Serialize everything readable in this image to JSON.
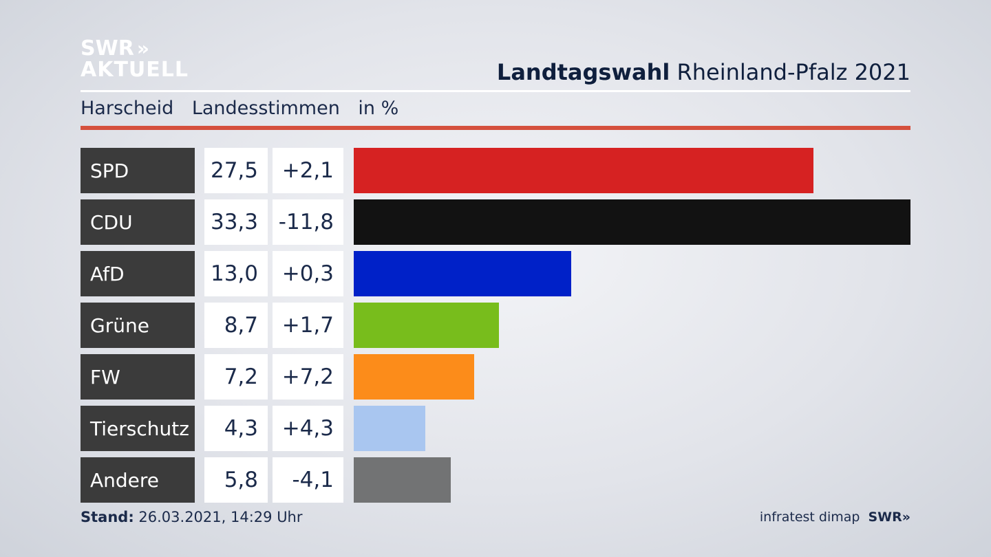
{
  "logo": {
    "line1": "SWR",
    "chevrons": "»",
    "line2": "AKTUELL"
  },
  "header": {
    "title_bold": "Landtagswahl",
    "title_rest": "Rheinland-Pfalz 2021"
  },
  "subheader": {
    "location": "Harscheid",
    "metric": "Landesstimmen",
    "unit": "in %"
  },
  "footer": {
    "stand_label": "Stand:",
    "stand_value": "26.03.2021, 14:29 Uhr",
    "source": "infratest dimap",
    "brand": "SWR»"
  },
  "colors": {
    "accent_red_rule": "#d5503d",
    "party_cell": "#3b3b3b"
  },
  "chart_data": {
    "type": "bar",
    "title": "Landtagswahl Rheinland-Pfalz 2021",
    "subtitle": "Harscheid Landesstimmen in %",
    "orientation": "horizontal",
    "categories": [
      "SPD",
      "CDU",
      "AfD",
      "Grüne",
      "FW",
      "Tierschutz",
      "Andere"
    ],
    "values": [
      27.5,
      33.3,
      13.0,
      8.7,
      7.2,
      4.3,
      5.8
    ],
    "value_labels": [
      "27,5",
      "33,3",
      "13,0",
      "8,7",
      "7,2",
      "4,3",
      "5,8"
    ],
    "diff_labels": [
      "+2,1",
      "-11,8",
      "+0,3",
      "+1,7",
      "+7,2",
      "+4,3",
      "-4,1"
    ],
    "colors": [
      "#d62222",
      "#121212",
      "#0021c8",
      "#78bd1c",
      "#fc8c1a",
      "#a9c6f0",
      "#727374"
    ],
    "xlim": [
      0,
      33.3
    ]
  }
}
